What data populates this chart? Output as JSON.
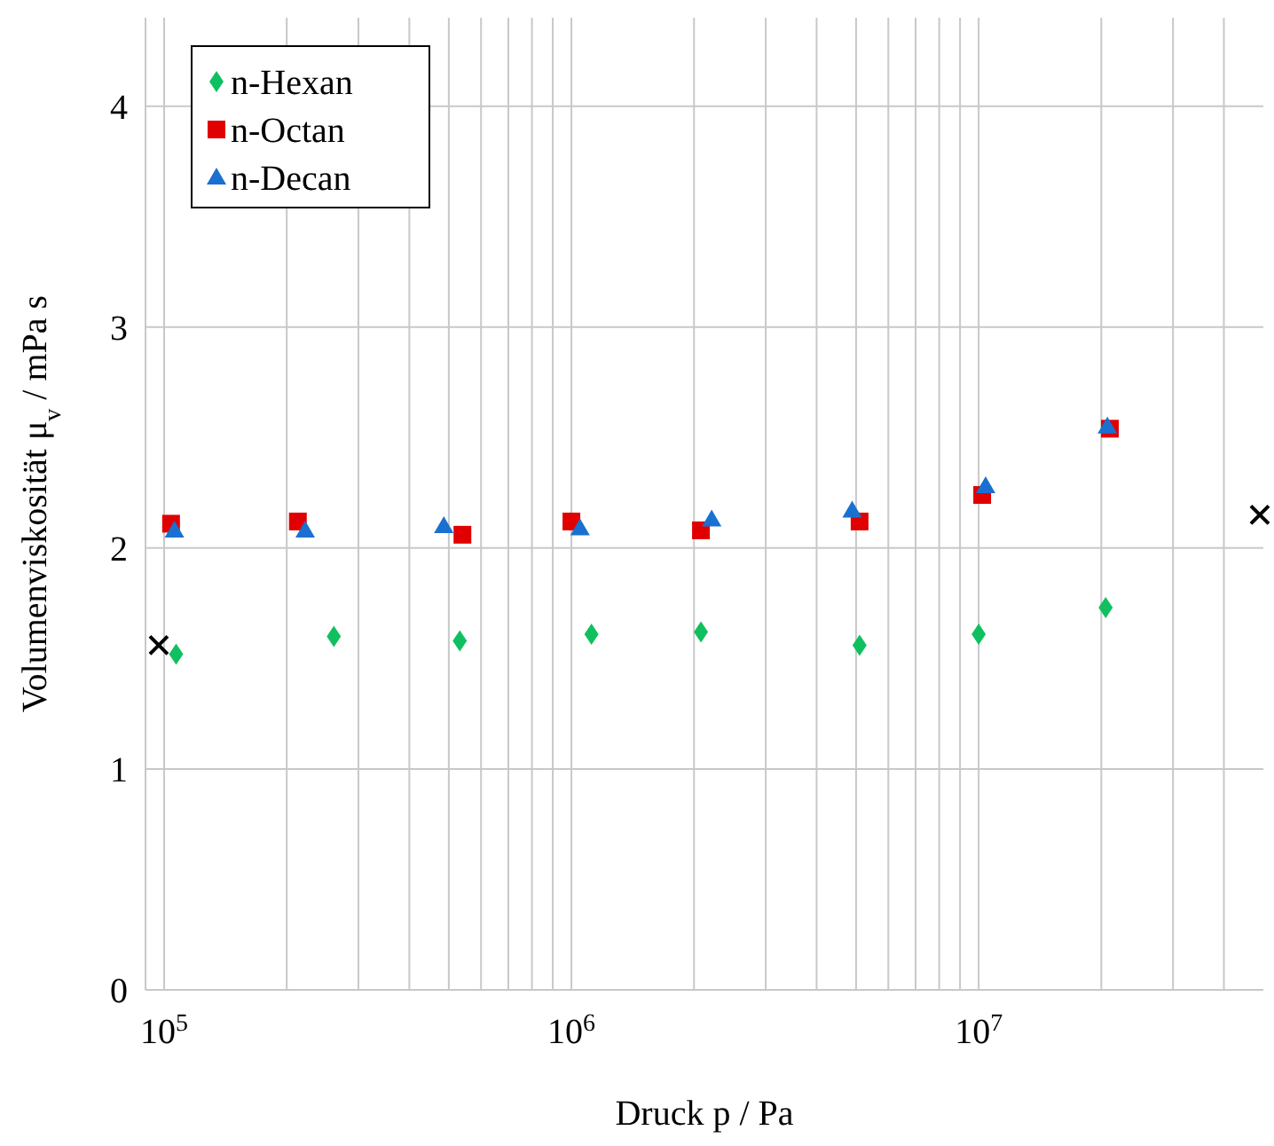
{
  "chart_data": {
    "type": "scatter",
    "xlabel": "Druck p / Pa",
    "ylabel": "Volumenviskosität μ$_{v}$ / mPa s",
    "log": "x",
    "grid": true,
    "legend": "top left",
    "xlim": [
      90000,
      50000000
    ],
    "ylim": [
      0,
      4.4
    ],
    "xticks": [
      {
        "value": 100000,
        "label": "10$^{5}$"
      },
      {
        "value": 200000,
        "label": null
      },
      {
        "value": 300000,
        "label": null
      },
      {
        "value": 400000,
        "label": null
      },
      {
        "value": 500000,
        "label": null
      },
      {
        "value": 600000,
        "label": null
      },
      {
        "value": 700000,
        "label": null
      },
      {
        "value": 800000,
        "label": null
      },
      {
        "value": 900000,
        "label": null
      },
      {
        "value": 1000000,
        "label": "10$^{6}$"
      },
      {
        "value": 2000000,
        "label": null
      },
      {
        "value": 3000000,
        "label": null
      },
      {
        "value": 4000000,
        "label": null
      },
      {
        "value": 5000000,
        "label": null
      },
      {
        "value": 6000000,
        "label": null
      },
      {
        "value": 7000000,
        "label": null
      },
      {
        "value": 8000000,
        "label": null
      },
      {
        "value": 9000000,
        "label": null
      },
      {
        "value": 10000000,
        "label": "10$^{7}$"
      },
      {
        "value": 20000000,
        "label": null
      },
      {
        "value": 30000000,
        "label": null
      },
      {
        "value": 40000000,
        "label": null
      }
    ],
    "yticks": [
      0,
      1,
      2,
      3,
      4
    ],
    "series": [
      {
        "name": "n-Hexan",
        "color": "#10c060",
        "marker": "diamond",
        "x": [
          107000,
          261000,
          532000,
          1120000,
          2080000,
          5100000,
          10000000,
          20500000
        ],
        "values": [
          1.52,
          1.6,
          1.58,
          1.61,
          1.62,
          1.56,
          1.61,
          1.73
        ]
      },
      {
        "name": "n-Octan",
        "color": "#e00000",
        "marker": "square",
        "x": [
          104000,
          213000,
          540000,
          1000000,
          2080000,
          5100000,
          10200000,
          21000000
        ],
        "values": [
          2.11,
          2.12,
          2.06,
          2.12,
          2.08,
          2.12,
          2.24,
          2.54
        ]
      },
      {
        "name": "n-Decan",
        "color": "#1a70d0",
        "marker": "triangle",
        "x": [
          106000,
          222000,
          486000,
          1050000,
          2210000,
          4890000,
          10400000,
          20700000
        ],
        "values": [
          2.08,
          2.08,
          2.1,
          2.09,
          2.13,
          2.17,
          2.28,
          2.55
        ]
      },
      {
        "color": "#000000",
        "marker": "cross",
        "x": [
          97000,
          49000000
        ],
        "values": [
          1.56,
          2.15
        ]
      }
    ]
  }
}
